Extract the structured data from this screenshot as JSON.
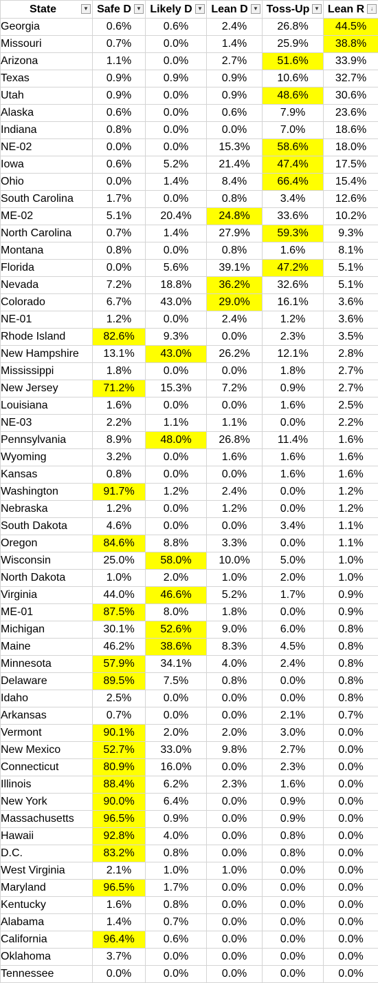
{
  "header": {
    "columns": [
      "State",
      "Safe D",
      "Likely D",
      "Lean D",
      "Toss-Up",
      "Lean R"
    ],
    "filter_icon": "dropdown-triangle",
    "sort_icon": "sort-descending"
  },
  "highlight_color": "#ffff00",
  "rows": [
    {
      "state": "Georgia",
      "values": [
        "0.6%",
        "0.6%",
        "2.4%",
        "26.8%",
        "44.5%"
      ],
      "hl": 4
    },
    {
      "state": "Missouri",
      "values": [
        "0.7%",
        "0.0%",
        "1.4%",
        "25.9%",
        "38.8%"
      ],
      "hl": 4
    },
    {
      "state": "Arizona",
      "values": [
        "1.1%",
        "0.0%",
        "2.7%",
        "51.6%",
        "33.9%"
      ],
      "hl": 3
    },
    {
      "state": "Texas",
      "values": [
        "0.9%",
        "0.9%",
        "0.9%",
        "10.6%",
        "32.7%"
      ],
      "hl": -1
    },
    {
      "state": "Utah",
      "values": [
        "0.9%",
        "0.0%",
        "0.9%",
        "48.6%",
        "30.6%"
      ],
      "hl": 3
    },
    {
      "state": "Alaska",
      "values": [
        "0.6%",
        "0.0%",
        "0.6%",
        "7.9%",
        "23.6%"
      ],
      "hl": -1
    },
    {
      "state": "Indiana",
      "values": [
        "0.8%",
        "0.0%",
        "0.0%",
        "7.0%",
        "18.6%"
      ],
      "hl": -1
    },
    {
      "state": "NE-02",
      "values": [
        "0.0%",
        "0.0%",
        "15.3%",
        "58.6%",
        "18.0%"
      ],
      "hl": 3
    },
    {
      "state": "Iowa",
      "values": [
        "0.6%",
        "5.2%",
        "21.4%",
        "47.4%",
        "17.5%"
      ],
      "hl": 3
    },
    {
      "state": "Ohio",
      "values": [
        "0.0%",
        "1.4%",
        "8.4%",
        "66.4%",
        "15.4%"
      ],
      "hl": 3
    },
    {
      "state": "South Carolina",
      "values": [
        "1.7%",
        "0.0%",
        "0.8%",
        "3.4%",
        "12.6%"
      ],
      "hl": -1
    },
    {
      "state": "ME-02",
      "values": [
        "5.1%",
        "20.4%",
        "24.8%",
        "33.6%",
        "10.2%"
      ],
      "hl": 2
    },
    {
      "state": "North Carolina",
      "values": [
        "0.7%",
        "1.4%",
        "27.9%",
        "59.3%",
        "9.3%"
      ],
      "hl": 3
    },
    {
      "state": "Montana",
      "values": [
        "0.8%",
        "0.0%",
        "0.8%",
        "1.6%",
        "8.1%"
      ],
      "hl": -1
    },
    {
      "state": "Florida",
      "values": [
        "0.0%",
        "5.6%",
        "39.1%",
        "47.2%",
        "5.1%"
      ],
      "hl": 3
    },
    {
      "state": "Nevada",
      "values": [
        "7.2%",
        "18.8%",
        "36.2%",
        "32.6%",
        "5.1%"
      ],
      "hl": 2
    },
    {
      "state": "Colorado",
      "values": [
        "6.7%",
        "43.0%",
        "29.0%",
        "16.1%",
        "3.6%"
      ],
      "hl": 2
    },
    {
      "state": "NE-01",
      "values": [
        "1.2%",
        "0.0%",
        "2.4%",
        "1.2%",
        "3.6%"
      ],
      "hl": -1
    },
    {
      "state": "Rhode Island",
      "values": [
        "82.6%",
        "9.3%",
        "0.0%",
        "2.3%",
        "3.5%"
      ],
      "hl": 0
    },
    {
      "state": "New Hampshire",
      "values": [
        "13.1%",
        "43.0%",
        "26.2%",
        "12.1%",
        "2.8%"
      ],
      "hl": 1
    },
    {
      "state": "Mississippi",
      "values": [
        "1.8%",
        "0.0%",
        "0.0%",
        "1.8%",
        "2.7%"
      ],
      "hl": -1
    },
    {
      "state": "New Jersey",
      "values": [
        "71.2%",
        "15.3%",
        "7.2%",
        "0.9%",
        "2.7%"
      ],
      "hl": 0
    },
    {
      "state": "Louisiana",
      "values": [
        "1.6%",
        "0.0%",
        "0.0%",
        "1.6%",
        "2.5%"
      ],
      "hl": -1
    },
    {
      "state": "NE-03",
      "values": [
        "2.2%",
        "1.1%",
        "1.1%",
        "0.0%",
        "2.2%"
      ],
      "hl": -1
    },
    {
      "state": "Pennsylvania",
      "values": [
        "8.9%",
        "48.0%",
        "26.8%",
        "11.4%",
        "1.6%"
      ],
      "hl": 1
    },
    {
      "state": "Wyoming",
      "values": [
        "3.2%",
        "0.0%",
        "1.6%",
        "1.6%",
        "1.6%"
      ],
      "hl": -1
    },
    {
      "state": "Kansas",
      "values": [
        "0.8%",
        "0.0%",
        "0.0%",
        "1.6%",
        "1.6%"
      ],
      "hl": -1
    },
    {
      "state": "Washington",
      "values": [
        "91.7%",
        "1.2%",
        "2.4%",
        "0.0%",
        "1.2%"
      ],
      "hl": 0
    },
    {
      "state": "Nebraska",
      "values": [
        "1.2%",
        "0.0%",
        "1.2%",
        "0.0%",
        "1.2%"
      ],
      "hl": -1
    },
    {
      "state": "South Dakota",
      "values": [
        "4.6%",
        "0.0%",
        "0.0%",
        "3.4%",
        "1.1%"
      ],
      "hl": -1
    },
    {
      "state": "Oregon",
      "values": [
        "84.6%",
        "8.8%",
        "3.3%",
        "0.0%",
        "1.1%"
      ],
      "hl": 0
    },
    {
      "state": "Wisconsin",
      "values": [
        "25.0%",
        "58.0%",
        "10.0%",
        "5.0%",
        "1.0%"
      ],
      "hl": 1
    },
    {
      "state": "North Dakota",
      "values": [
        "1.0%",
        "2.0%",
        "1.0%",
        "2.0%",
        "1.0%"
      ],
      "hl": -1
    },
    {
      "state": "Virginia",
      "values": [
        "44.0%",
        "46.6%",
        "5.2%",
        "1.7%",
        "0.9%"
      ],
      "hl": 1
    },
    {
      "state": "ME-01",
      "values": [
        "87.5%",
        "8.0%",
        "1.8%",
        "0.0%",
        "0.9%"
      ],
      "hl": 0
    },
    {
      "state": "Michigan",
      "values": [
        "30.1%",
        "52.6%",
        "9.0%",
        "6.0%",
        "0.8%"
      ],
      "hl": 1
    },
    {
      "state": "Maine",
      "values": [
        "46.2%",
        "38.6%",
        "8.3%",
        "4.5%",
        "0.8%"
      ],
      "hl": 1
    },
    {
      "state": "Minnesota",
      "values": [
        "57.9%",
        "34.1%",
        "4.0%",
        "2.4%",
        "0.8%"
      ],
      "hl": 0
    },
    {
      "state": "Delaware",
      "values": [
        "89.5%",
        "7.5%",
        "0.8%",
        "0.0%",
        "0.8%"
      ],
      "hl": 0
    },
    {
      "state": "Idaho",
      "values": [
        "2.5%",
        "0.0%",
        "0.0%",
        "0.0%",
        "0.8%"
      ],
      "hl": -1
    },
    {
      "state": "Arkansas",
      "values": [
        "0.7%",
        "0.0%",
        "0.0%",
        "2.1%",
        "0.7%"
      ],
      "hl": -1
    },
    {
      "state": "Vermont",
      "values": [
        "90.1%",
        "2.0%",
        "2.0%",
        "3.0%",
        "0.0%"
      ],
      "hl": 0
    },
    {
      "state": "New Mexico",
      "values": [
        "52.7%",
        "33.0%",
        "9.8%",
        "2.7%",
        "0.0%"
      ],
      "hl": 0
    },
    {
      "state": "Connecticut",
      "values": [
        "80.9%",
        "16.0%",
        "0.0%",
        "2.3%",
        "0.0%"
      ],
      "hl": 0
    },
    {
      "state": "Illinois",
      "values": [
        "88.4%",
        "6.2%",
        "2.3%",
        "1.6%",
        "0.0%"
      ],
      "hl": 0
    },
    {
      "state": "New York",
      "values": [
        "90.0%",
        "6.4%",
        "0.0%",
        "0.9%",
        "0.0%"
      ],
      "hl": 0
    },
    {
      "state": "Massachusetts",
      "values": [
        "96.5%",
        "0.9%",
        "0.0%",
        "0.9%",
        "0.0%"
      ],
      "hl": 0
    },
    {
      "state": "Hawaii",
      "values": [
        "92.8%",
        "4.0%",
        "0.0%",
        "0.8%",
        "0.0%"
      ],
      "hl": 0
    },
    {
      "state": "D.C.",
      "values": [
        "83.2%",
        "0.8%",
        "0.0%",
        "0.8%",
        "0.0%"
      ],
      "hl": 0
    },
    {
      "state": "West Virginia",
      "values": [
        "2.1%",
        "1.0%",
        "1.0%",
        "0.0%",
        "0.0%"
      ],
      "hl": -1
    },
    {
      "state": "Maryland",
      "values": [
        "96.5%",
        "1.7%",
        "0.0%",
        "0.0%",
        "0.0%"
      ],
      "hl": 0
    },
    {
      "state": "Kentucky",
      "values": [
        "1.6%",
        "0.8%",
        "0.0%",
        "0.0%",
        "0.0%"
      ],
      "hl": -1
    },
    {
      "state": "Alabama",
      "values": [
        "1.4%",
        "0.7%",
        "0.0%",
        "0.0%",
        "0.0%"
      ],
      "hl": -1
    },
    {
      "state": "California",
      "values": [
        "96.4%",
        "0.6%",
        "0.0%",
        "0.0%",
        "0.0%"
      ],
      "hl": 0
    },
    {
      "state": "Oklahoma",
      "values": [
        "3.7%",
        "0.0%",
        "0.0%",
        "0.0%",
        "0.0%"
      ],
      "hl": -1
    },
    {
      "state": "Tennessee",
      "values": [
        "0.0%",
        "0.0%",
        "0.0%",
        "0.0%",
        "0.0%"
      ],
      "hl": -1
    }
  ]
}
